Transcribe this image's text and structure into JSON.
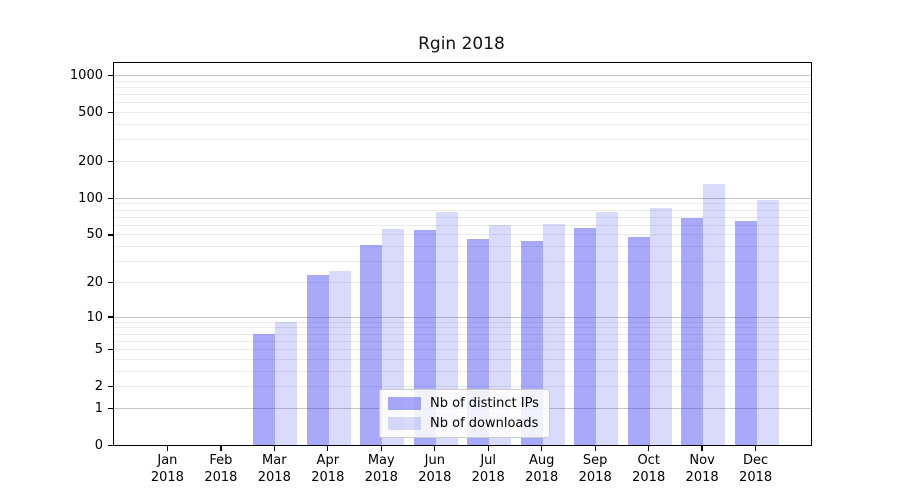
{
  "title": "Rgin 2018",
  "chart_data": {
    "type": "bar",
    "title": "Rgin 2018",
    "categories": [
      "Jan",
      "Feb",
      "Mar",
      "Apr",
      "May",
      "Jun",
      "Jul",
      "Aug",
      "Sep",
      "Oct",
      "Nov",
      "Dec"
    ],
    "xtick_year": "2018",
    "series": [
      {
        "name": "Nb of distinct IPs",
        "color": "rgba(50,50,240,0.42)",
        "values": [
          0,
          0,
          7,
          23,
          41,
          54,
          46,
          44,
          56,
          48,
          68,
          64
        ]
      },
      {
        "name": "Nb of downloads",
        "color": "rgba(50,50,240,0.18)",
        "values": [
          0,
          0,
          9,
          25,
          55,
          76,
          60,
          61,
          76,
          82,
          130,
          96
        ]
      }
    ],
    "yscale": "log1p",
    "ylim": [
      0,
      1250
    ],
    "yticks": [
      0,
      1,
      2,
      5,
      10,
      20,
      50,
      100,
      200,
      500,
      1000
    ],
    "grid_major": [
      1,
      10,
      100,
      1000
    ],
    "grid_minor": [
      2,
      3,
      4,
      5,
      6,
      7,
      8,
      9,
      20,
      30,
      40,
      50,
      60,
      70,
      80,
      90,
      200,
      300,
      400,
      500,
      600,
      700,
      800,
      900
    ],
    "grid": "on",
    "legend_position": "lower center",
    "xlabel": "",
    "ylabel": ""
  }
}
